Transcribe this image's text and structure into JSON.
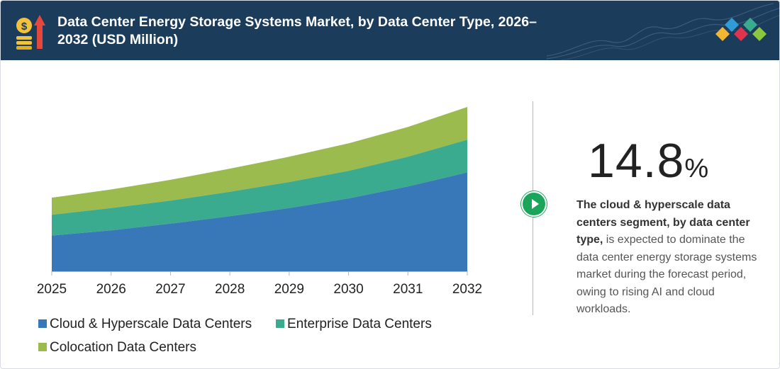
{
  "header": {
    "title": "Data Center Energy Storage Systems Market, by Data Center Type, 2026–2032 (USD Million)",
    "icon": "money-growth-icon",
    "logo": "diamond-logo-icon"
  },
  "chart_data": {
    "type": "area",
    "stacked": true,
    "x": [
      "2025",
      "2026",
      "2027",
      "2028",
      "2029",
      "2030",
      "2031",
      "2032"
    ],
    "series": [
      {
        "name": "Cloud & Hyperscale Data Centers",
        "color": "#3878b8",
        "values": [
          48,
          55,
          64,
          74,
          85,
          98,
          114,
          133
        ]
      },
      {
        "name": "Enterprise Data Centers",
        "color": "#3bab8f",
        "values": [
          28,
          30,
          31,
          33,
          35,
          37,
          40,
          44
        ]
      },
      {
        "name": "Colocation Data Centers",
        "color": "#9bbb4f",
        "values": [
          23,
          25,
          28,
          31,
          34,
          37,
          40,
          44
        ]
      }
    ],
    "title": "",
    "xlabel": "",
    "ylabel": "",
    "ylim": [
      0,
      221
    ],
    "grid": false,
    "legend": "bottom-left"
  },
  "stat": {
    "value": "14.8",
    "unit": "%"
  },
  "description": {
    "bold": "The cloud & hyperscale data centers segment, by data center type,",
    "rest": " is expected to dominate the data center energy storage systems market during the forecast period, owing to rising AI and cloud workloads."
  },
  "play_icon": "play-icon"
}
